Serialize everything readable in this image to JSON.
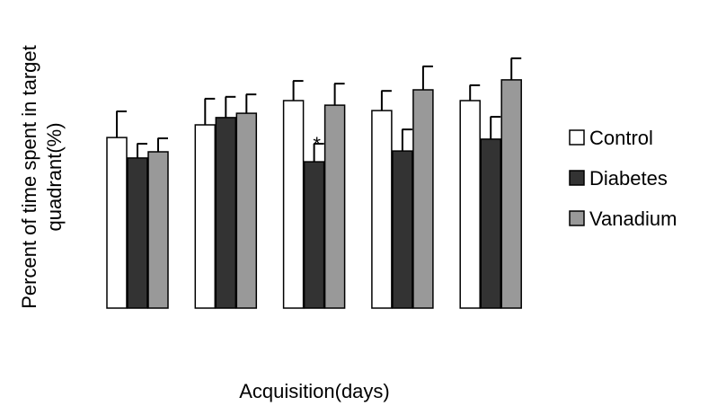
{
  "chart_data": {
    "type": "bar",
    "y_label": [
      "Percent of time spent in target",
      "quadrant(%)"
    ],
    "x_label": "Acquisition(days)",
    "categories": [
      null,
      null,
      null,
      null,
      null
    ],
    "ylim": [
      0,
      100
    ],
    "series": [
      {
        "name": "Control",
        "color": "#ffffff",
        "values": [
          63.3,
          68,
          77,
          73.3,
          77
        ],
        "errors": [
          9.7,
          9.7,
          7.3,
          7.3,
          5.7
        ]
      },
      {
        "name": "Diabetes",
        "color": "#333333",
        "values": [
          55.7,
          70.7,
          54.3,
          58.3,
          62.7
        ],
        "errors": [
          5.3,
          7.7,
          6.7,
          8,
          8.3
        ]
      },
      {
        "name": "Vanadium",
        "color": "#999999",
        "values": [
          58,
          72.3,
          75.3,
          81,
          84.7
        ],
        "errors": [
          5,
          7,
          8,
          8.7,
          8
        ]
      }
    ],
    "annotations": [
      {
        "text": "*",
        "series": 1,
        "category": 2
      }
    ]
  }
}
